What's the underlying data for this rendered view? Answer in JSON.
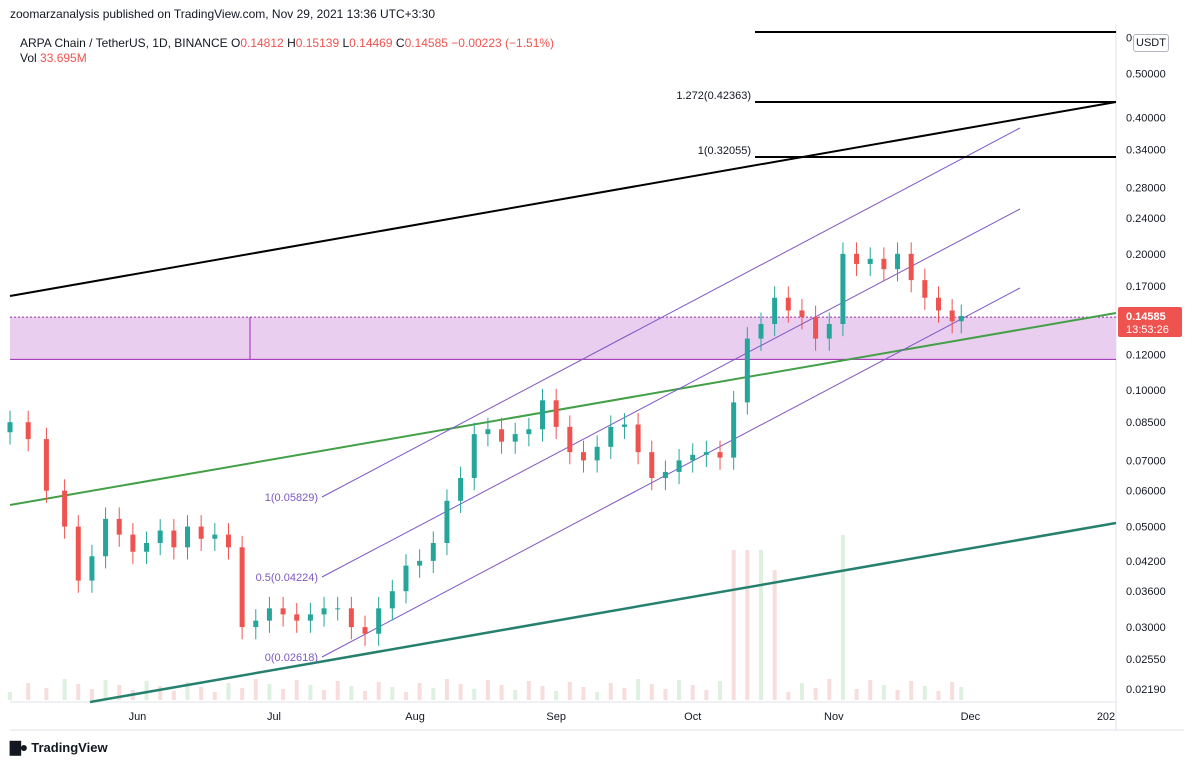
{
  "header": {
    "publisher": "zoomarzanalysis published on TradingView.com, Nov 29, 2021 13:36 UTC+3:30",
    "symbol": "ARPA Chain / TetherUS, 1D, BINANCE",
    "o_label": "O",
    "o": "0.14812",
    "h_label": "H",
    "h": "0.15139",
    "l_label": "L",
    "l": "0.14469",
    "c_label": "C",
    "c": "0.14585",
    "change": "−0.00223 (−1.51%)",
    "vol_label": "Vol",
    "vol": "33.695M"
  },
  "footer": {
    "brand": "TradingView",
    "logo_icon": "tradingview-logo-icon"
  },
  "currency_badge": "USDT",
  "colors": {
    "up": "#26a69a",
    "down": "#ef5350",
    "channel": "#7e57c2",
    "green_line": "#43a047",
    "zone_fill": "#e8c9ee",
    "zone_border": "#9c27b0",
    "price_tag": "#ef5350"
  },
  "chart_data": {
    "type": "candlestick",
    "y_scale": "log",
    "y_range": [
      0.0205,
      0.64
    ],
    "y_ticks": [
      "0.60000",
      "0.50000",
      "0.40000",
      "0.34000",
      "0.28000",
      "0.24000",
      "0.20000",
      "0.17000",
      "0.14585",
      "0.12000",
      "0.10000",
      "0.08500",
      "0.07000",
      "0.06000",
      "0.05000",
      "0.04200",
      "0.03600",
      "0.03000",
      "0.02550",
      "0.02190"
    ],
    "x_ticks": [
      {
        "label": "Jun",
        "date": "2021-06-01"
      },
      {
        "label": "Jul",
        "date": "2021-07-01"
      },
      {
        "label": "Aug",
        "date": "2021-08-01"
      },
      {
        "label": "Sep",
        "date": "2021-09-01"
      },
      {
        "label": "Oct",
        "date": "2021-10-01"
      },
      {
        "label": "Nov",
        "date": "2021-11-01"
      },
      {
        "label": "Dec",
        "date": "2021-12-01"
      },
      {
        "label": "202",
        "date": "2022-01-01"
      }
    ],
    "x_range": [
      "2021-05-04",
      "2022-01-02"
    ],
    "last_price": "0.14585",
    "countdown": "13:53:26",
    "closes": [
      [
        "2021-05-04",
        0.085
      ],
      [
        "2021-05-08",
        0.078
      ],
      [
        "2021-05-12",
        0.06
      ],
      [
        "2021-05-16",
        0.05
      ],
      [
        "2021-05-19",
        0.038
      ],
      [
        "2021-05-22",
        0.043
      ],
      [
        "2021-05-25",
        0.052
      ],
      [
        "2021-05-28",
        0.048
      ],
      [
        "2021-05-31",
        0.044
      ],
      [
        "2021-06-03",
        0.046
      ],
      [
        "2021-06-06",
        0.049
      ],
      [
        "2021-06-09",
        0.045
      ],
      [
        "2021-06-12",
        0.05
      ],
      [
        "2021-06-15",
        0.047
      ],
      [
        "2021-06-18",
        0.048
      ],
      [
        "2021-06-21",
        0.045
      ],
      [
        "2021-06-24",
        0.03
      ],
      [
        "2021-06-27",
        0.031
      ],
      [
        "2021-06-30",
        0.033
      ],
      [
        "2021-07-03",
        0.032
      ],
      [
        "2021-07-06",
        0.031
      ],
      [
        "2021-07-09",
        0.032
      ],
      [
        "2021-07-12",
        0.033
      ],
      [
        "2021-07-15",
        0.033
      ],
      [
        "2021-07-18",
        0.03
      ],
      [
        "2021-07-21",
        0.029
      ],
      [
        "2021-07-24",
        0.033
      ],
      [
        "2021-07-27",
        0.036
      ],
      [
        "2021-07-30",
        0.041
      ],
      [
        "2021-08-02",
        0.042
      ],
      [
        "2021-08-05",
        0.046
      ],
      [
        "2021-08-08",
        0.057
      ],
      [
        "2021-08-11",
        0.064
      ],
      [
        "2021-08-14",
        0.08
      ],
      [
        "2021-08-17",
        0.082
      ],
      [
        "2021-08-20",
        0.077
      ],
      [
        "2021-08-23",
        0.08
      ],
      [
        "2021-08-26",
        0.082
      ],
      [
        "2021-08-29",
        0.095
      ],
      [
        "2021-09-01",
        0.083
      ],
      [
        "2021-09-04",
        0.073
      ],
      [
        "2021-09-07",
        0.07
      ],
      [
        "2021-09-10",
        0.075
      ],
      [
        "2021-09-13",
        0.083
      ],
      [
        "2021-09-16",
        0.084
      ],
      [
        "2021-09-19",
        0.073
      ],
      [
        "2021-09-22",
        0.064
      ],
      [
        "2021-09-25",
        0.066
      ],
      [
        "2021-09-28",
        0.07
      ],
      [
        "2021-10-01",
        0.072
      ],
      [
        "2021-10-04",
        0.073
      ],
      [
        "2021-10-07",
        0.071
      ],
      [
        "2021-10-10",
        0.094
      ],
      [
        "2021-10-13",
        0.13
      ],
      [
        "2021-10-16",
        0.14
      ],
      [
        "2021-10-19",
        0.16
      ],
      [
        "2021-10-22",
        0.15
      ],
      [
        "2021-10-25",
        0.145
      ],
      [
        "2021-10-28",
        0.13
      ],
      [
        "2021-10-31",
        0.14
      ],
      [
        "2021-11-03",
        0.2
      ],
      [
        "2021-11-06",
        0.19
      ],
      [
        "2021-11-09",
        0.195
      ],
      [
        "2021-11-12",
        0.185
      ],
      [
        "2021-11-15",
        0.2
      ],
      [
        "2021-11-18",
        0.175
      ],
      [
        "2021-11-21",
        0.16
      ],
      [
        "2021-11-24",
        0.15
      ],
      [
        "2021-11-27",
        0.142
      ],
      [
        "2021-11-29",
        0.14585
      ]
    ],
    "levels": [
      {
        "label": "1.272(0.42363)",
        "value": 0.42363
      },
      {
        "label": "1(0.32055)",
        "value": 0.32055
      },
      {
        "label": "1(0.05829)",
        "value": 0.05829
      },
      {
        "label": "0.5(0.04224)",
        "value": 0.04224
      },
      {
        "label": "0(0.02618)",
        "value": 0.02618
      }
    ],
    "zone": {
      "top": 0.145,
      "bottom": 0.117
    }
  }
}
